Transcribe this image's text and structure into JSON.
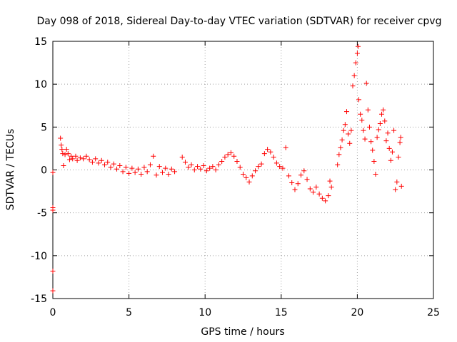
{
  "chart_data": {
    "type": "scatter",
    "title": "Day 098 of 2018, Sidereal Day-to-day VTEC variation (SDTVAR) for receiver cpvg",
    "xlabel": "GPS time / hours",
    "ylabel": "SDTVAR / TECUs",
    "xlim": [
      0,
      25
    ],
    "ylim": [
      -15,
      15
    ],
    "xticks": [
      0,
      5,
      10,
      15,
      20,
      25
    ],
    "yticks": [
      -15,
      -10,
      -5,
      0,
      5,
      10,
      15
    ],
    "grid": true,
    "marker": "plus",
    "color": "#ff0000",
    "series": [
      {
        "name": "SDTVAR",
        "points": [
          [
            0.0,
            -0.3
          ],
          [
            0.0,
            -4.4
          ],
          [
            0.0,
            -4.7
          ],
          [
            0.0,
            -11.8
          ],
          [
            0.0,
            -14.1
          ],
          [
            0.5,
            3.7
          ],
          [
            0.55,
            2.9
          ],
          [
            0.6,
            2.4
          ],
          [
            0.65,
            1.9
          ],
          [
            0.7,
            0.5
          ],
          [
            0.8,
            1.8
          ],
          [
            0.9,
            2.4
          ],
          [
            1.0,
            1.9
          ],
          [
            1.1,
            1.2
          ],
          [
            1.2,
            1.6
          ],
          [
            1.3,
            1.3
          ],
          [
            1.5,
            1.6
          ],
          [
            1.6,
            1.1
          ],
          [
            1.8,
            1.4
          ],
          [
            2.0,
            1.3
          ],
          [
            2.2,
            1.6
          ],
          [
            2.4,
            1.2
          ],
          [
            2.6,
            0.9
          ],
          [
            2.8,
            1.3
          ],
          [
            3.0,
            0.8
          ],
          [
            3.2,
            1.1
          ],
          [
            3.4,
            0.6
          ],
          [
            3.6,
            0.9
          ],
          [
            3.8,
            0.3
          ],
          [
            4.0,
            0.7
          ],
          [
            4.2,
            0.1
          ],
          [
            4.4,
            0.5
          ],
          [
            4.6,
            -0.2
          ],
          [
            4.8,
            0.3
          ],
          [
            5.0,
            -0.4
          ],
          [
            5.2,
            0.2
          ],
          [
            5.4,
            -0.3
          ],
          [
            5.6,
            0.1
          ],
          [
            5.8,
            -0.5
          ],
          [
            6.0,
            0.3
          ],
          [
            6.2,
            -0.2
          ],
          [
            6.4,
            0.6
          ],
          [
            6.6,
            1.6
          ],
          [
            6.8,
            -0.6
          ],
          [
            7.0,
            0.4
          ],
          [
            7.2,
            -0.3
          ],
          [
            7.4,
            0.2
          ],
          [
            7.6,
            -0.5
          ],
          [
            7.8,
            0.1
          ],
          [
            8.0,
            -0.2
          ],
          [
            8.5,
            1.5
          ],
          [
            8.7,
            0.9
          ],
          [
            8.9,
            0.3
          ],
          [
            9.1,
            0.6
          ],
          [
            9.3,
            0.0
          ],
          [
            9.5,
            0.4
          ],
          [
            9.7,
            0.1
          ],
          [
            9.9,
            0.5
          ],
          [
            10.1,
            -0.1
          ],
          [
            10.3,
            0.2
          ],
          [
            10.5,
            0.4
          ],
          [
            10.7,
            0.0
          ],
          [
            10.9,
            0.6
          ],
          [
            11.1,
            1.0
          ],
          [
            11.3,
            1.5
          ],
          [
            11.5,
            1.8
          ],
          [
            11.7,
            2.0
          ],
          [
            11.9,
            1.6
          ],
          [
            12.1,
            1.0
          ],
          [
            12.3,
            0.3
          ],
          [
            12.5,
            -0.5
          ],
          [
            12.7,
            -0.9
          ],
          [
            12.9,
            -1.4
          ],
          [
            13.1,
            -0.7
          ],
          [
            13.3,
            -0.1
          ],
          [
            13.5,
            0.4
          ],
          [
            13.7,
            0.7
          ],
          [
            13.9,
            1.9
          ],
          [
            14.1,
            2.4
          ],
          [
            14.3,
            2.1
          ],
          [
            14.5,
            1.5
          ],
          [
            14.7,
            0.8
          ],
          [
            14.9,
            0.4
          ],
          [
            15.1,
            0.2
          ],
          [
            15.3,
            2.6
          ],
          [
            15.5,
            -0.7
          ],
          [
            15.7,
            -1.5
          ],
          [
            15.9,
            -2.3
          ],
          [
            16.1,
            -1.6
          ],
          [
            16.3,
            -0.6
          ],
          [
            16.5,
            -0.1
          ],
          [
            16.7,
            -1.1
          ],
          [
            16.9,
            -2.2
          ],
          [
            17.1,
            -2.6
          ],
          [
            17.3,
            -2.0
          ],
          [
            17.5,
            -2.8
          ],
          [
            17.7,
            -3.3
          ],
          [
            17.9,
            -3.6
          ],
          [
            18.1,
            -3.0
          ],
          [
            18.2,
            -1.3
          ],
          [
            18.3,
            -2.0
          ],
          [
            18.7,
            0.6
          ],
          [
            18.8,
            1.8
          ],
          [
            18.9,
            2.6
          ],
          [
            19.0,
            3.5
          ],
          [
            19.1,
            4.6
          ],
          [
            19.2,
            5.3
          ],
          [
            19.3,
            6.8
          ],
          [
            19.4,
            4.2
          ],
          [
            19.5,
            3.1
          ],
          [
            19.6,
            4.6
          ],
          [
            19.7,
            9.8
          ],
          [
            19.8,
            11.0
          ],
          [
            19.9,
            12.5
          ],
          [
            20.0,
            13.6
          ],
          [
            20.05,
            14.4
          ],
          [
            20.1,
            8.2
          ],
          [
            20.2,
            6.5
          ],
          [
            20.3,
            5.8
          ],
          [
            20.4,
            4.6
          ],
          [
            20.5,
            3.6
          ],
          [
            20.6,
            10.1
          ],
          [
            20.7,
            7.0
          ],
          [
            20.8,
            5.0
          ],
          [
            20.9,
            3.3
          ],
          [
            21.0,
            2.3
          ],
          [
            21.1,
            1.0
          ],
          [
            21.2,
            -0.5
          ],
          [
            21.3,
            3.8
          ],
          [
            21.4,
            4.7
          ],
          [
            21.5,
            5.4
          ],
          [
            21.6,
            6.5
          ],
          [
            21.7,
            7.0
          ],
          [
            21.8,
            5.7
          ],
          [
            21.9,
            3.4
          ],
          [
            22.0,
            4.3
          ],
          [
            22.1,
            2.5
          ],
          [
            22.2,
            1.1
          ],
          [
            22.3,
            2.1
          ],
          [
            22.4,
            4.6
          ],
          [
            22.5,
            -2.3
          ],
          [
            22.6,
            -1.4
          ],
          [
            22.7,
            1.5
          ],
          [
            22.8,
            3.2
          ],
          [
            22.85,
            3.8
          ],
          [
            22.9,
            -1.9
          ]
        ]
      }
    ]
  }
}
